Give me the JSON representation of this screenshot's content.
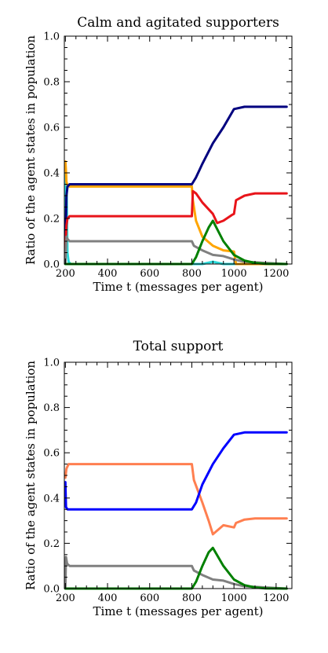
{
  "chart_data": [
    {
      "type": "line",
      "title": "Calm and agitated supporters",
      "xlabel": "Time t (messages per agent)",
      "ylabel": "Ratio of the agent states in population",
      "xlim": [
        195,
        1275
      ],
      "ylim": [
        0,
        1.0
      ],
      "xticks": [
        200,
        400,
        600,
        800,
        1000,
        1200
      ],
      "xtick_labels": [
        "200",
        "400",
        "600",
        "800",
        "1000",
        "1200"
      ],
      "yticks": [
        0,
        0.2,
        0.4,
        0.6,
        0.8,
        1.0
      ],
      "ytick_labels": [
        "0.0",
        "0.2",
        "0.4",
        "0.6",
        "0.8",
        "1.0"
      ],
      "grid": false,
      "series": [
        {
          "color": "#2bd9d9",
          "x": [
            200,
            203,
            206,
            210,
            215,
            225,
            300,
            600,
            800,
            850,
            900,
            950,
            1000,
            1250
          ],
          "y": [
            0.0,
            0.4,
            0.3,
            0.05,
            0.01,
            0.0,
            0.0,
            0.0,
            0.0,
            0.0,
            0.01,
            0.0,
            0.0,
            0.0
          ]
        },
        {
          "color": "#ffa500",
          "x": [
            200,
            202,
            205,
            210,
            220,
            400,
            600,
            800,
            805,
            820,
            850,
            900,
            950,
            1000,
            1010,
            1250
          ],
          "y": [
            0.45,
            0.42,
            0.36,
            0.345,
            0.34,
            0.34,
            0.34,
            0.34,
            0.28,
            0.19,
            0.12,
            0.08,
            0.06,
            0.055,
            0.0,
            0.0
          ]
        },
        {
          "color": "#00007f",
          "x": [
            200,
            205,
            210,
            220,
            400,
            600,
            800,
            820,
            850,
            900,
            950,
            1000,
            1050,
            1100,
            1250
          ],
          "y": [
            0.08,
            0.3,
            0.34,
            0.35,
            0.35,
            0.35,
            0.35,
            0.38,
            0.44,
            0.53,
            0.6,
            0.68,
            0.69,
            0.69,
            0.69
          ]
        },
        {
          "color": "#e8141a",
          "x": [
            200,
            205,
            210,
            220,
            400,
            600,
            800,
            805,
            820,
            850,
            900,
            920,
            950,
            990,
            1000,
            1010,
            1050,
            1100,
            1250
          ],
          "y": [
            0.05,
            0.17,
            0.2,
            0.21,
            0.21,
            0.21,
            0.21,
            0.32,
            0.31,
            0.27,
            0.22,
            0.18,
            0.19,
            0.215,
            0.22,
            0.28,
            0.3,
            0.31,
            0.31
          ]
        },
        {
          "color": "#808080",
          "x": [
            200,
            205,
            210,
            220,
            400,
            600,
            790,
            800,
            810,
            850,
            900,
            950,
            1000,
            1050,
            1250
          ],
          "y": [
            0.0,
            0.12,
            0.11,
            0.1,
            0.1,
            0.1,
            0.1,
            0.1,
            0.08,
            0.06,
            0.04,
            0.035,
            0.02,
            0.01,
            0.0
          ]
        },
        {
          "color": "#008000",
          "x": [
            200,
            600,
            800,
            820,
            850,
            880,
            900,
            950,
            1000,
            1050,
            1100,
            1150,
            1250
          ],
          "y": [
            0.0,
            0.0,
            0.0,
            0.03,
            0.1,
            0.16,
            0.19,
            0.1,
            0.04,
            0.015,
            0.005,
            0.001,
            0.0
          ]
        }
      ]
    },
    {
      "type": "line",
      "title": "Total support",
      "xlabel": "Time t (messages per agent)",
      "ylabel": "Ratio of the agent states in population",
      "xlim": [
        195,
        1275
      ],
      "ylim": [
        0,
        1.0
      ],
      "xticks": [
        200,
        400,
        600,
        800,
        1000,
        1200
      ],
      "xtick_labels": [
        "200",
        "400",
        "600",
        "800",
        "1000",
        "1200"
      ],
      "yticks": [
        0,
        0.2,
        0.4,
        0.6,
        0.8,
        1.0
      ],
      "ytick_labels": [
        "0.0",
        "0.2",
        "0.4",
        "0.6",
        "0.8",
        "1.0"
      ],
      "grid": false,
      "series": [
        {
          "color": "#ff7f50",
          "x": [
            200,
            205,
            215,
            400,
            600,
            800,
            810,
            850,
            880,
            900,
            950,
            1000,
            1010,
            1050,
            1100,
            1250
          ],
          "y": [
            0.49,
            0.53,
            0.55,
            0.55,
            0.55,
            0.55,
            0.48,
            0.38,
            0.3,
            0.24,
            0.28,
            0.27,
            0.29,
            0.305,
            0.31,
            0.31
          ]
        },
        {
          "color": "#0000ff",
          "x": [
            200,
            203,
            210,
            400,
            600,
            800,
            820,
            850,
            900,
            950,
            1000,
            1050,
            1100,
            1250
          ],
          "y": [
            0.47,
            0.36,
            0.35,
            0.35,
            0.35,
            0.35,
            0.38,
            0.46,
            0.55,
            0.62,
            0.68,
            0.69,
            0.69,
            0.69
          ]
        },
        {
          "color": "#808080",
          "x": [
            200,
            203,
            208,
            220,
            400,
            600,
            790,
            800,
            810,
            850,
            900,
            950,
            1000,
            1050,
            1250
          ],
          "y": [
            0.0,
            0.14,
            0.11,
            0.1,
            0.1,
            0.1,
            0.1,
            0.1,
            0.08,
            0.06,
            0.04,
            0.035,
            0.02,
            0.01,
            0.0
          ]
        },
        {
          "color": "#008000",
          "x": [
            200,
            600,
            800,
            820,
            850,
            880,
            900,
            950,
            1000,
            1050,
            1100,
            1150,
            1250
          ],
          "y": [
            0.0,
            0.0,
            0.0,
            0.03,
            0.1,
            0.16,
            0.18,
            0.1,
            0.04,
            0.015,
            0.005,
            0.001,
            0.0
          ]
        }
      ]
    }
  ]
}
